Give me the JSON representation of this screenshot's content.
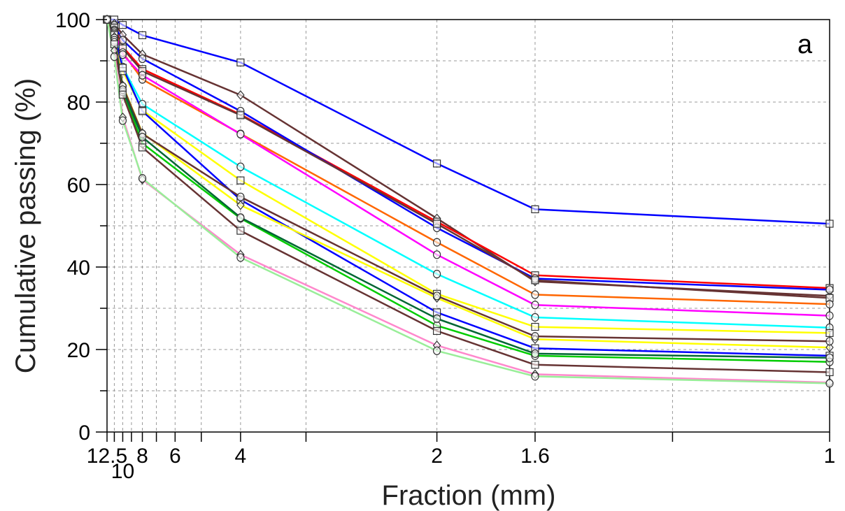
{
  "chart_data": {
    "type": "line",
    "title": "",
    "xlabel": "Fraction (mm)",
    "ylabel": "Cumulative passing (%)",
    "panel_label": "a",
    "x_scale": "reciprocal",
    "xlim": [
      12.5,
      1
    ],
    "ylim": [
      0,
      100
    ],
    "grid": true,
    "x_ticks": [
      12.5,
      10,
      8,
      6,
      4,
      2,
      1.6,
      1
    ],
    "x_tick_labels": [
      "12.5",
      "10",
      "8",
      "6",
      "4",
      "2",
      "1.6",
      "1"
    ],
    "y_ticks": [
      0,
      20,
      40,
      60,
      80,
      100
    ],
    "y_tick_labels": [
      "0",
      "20",
      "40",
      "60",
      "80",
      "100"
    ],
    "x": [
      12.5,
      11.2,
      10,
      8,
      4,
      2,
      1.6,
      1
    ],
    "series": [
      {
        "color": "#0000ff",
        "marker": "square",
        "values": [
          100,
          100,
          98.7,
          96.2,
          89.6,
          65.1,
          54.0,
          50.5
        ]
      },
      {
        "color": "#663333",
        "marker": "diamond",
        "values": [
          100,
          99.0,
          96.3,
          91.6,
          81.7,
          51.8,
          36.5,
          33.0
        ]
      },
      {
        "color": "#ff0000",
        "marker": "square",
        "values": [
          100,
          98.2,
          93.4,
          88.0,
          77.0,
          51.0,
          38.0,
          34.9
        ]
      },
      {
        "color": "#0000ff",
        "marker": "circle",
        "values": [
          100,
          98.6,
          95.0,
          90.5,
          77.8,
          49.5,
          37.2,
          34.5
        ]
      },
      {
        "color": "#663333",
        "marker": "square",
        "values": [
          100,
          98.0,
          93.0,
          87.5,
          76.8,
          50.5,
          36.8,
          32.5
        ]
      },
      {
        "color": "#ff6600",
        "marker": "circle",
        "values": [
          100,
          97.5,
          92.0,
          85.5,
          72.3,
          46.0,
          33.3,
          31.0
        ]
      },
      {
        "color": "#ff00ff",
        "marker": "circle",
        "values": [
          100,
          97.2,
          91.5,
          86.5,
          72.2,
          43.0,
          30.8,
          28.2
        ]
      },
      {
        "color": "#00ffff",
        "marker": "circle",
        "values": [
          100,
          96.8,
          88.5,
          79.5,
          64.3,
          38.3,
          27.8,
          25.3
        ]
      },
      {
        "color": "#ffff00",
        "marker": "square",
        "values": [
          100,
          96.5,
          87.5,
          78.0,
          61.0,
          33.5,
          25.5,
          24.0
        ]
      },
      {
        "color": "#0000ff",
        "marker": "square",
        "values": [
          100,
          96.2,
          88.3,
          77.8,
          56.3,
          29.0,
          20.3,
          18.5
        ]
      },
      {
        "color": "#ffff00",
        "marker": "diamond",
        "values": [
          100,
          95.8,
          84.0,
          72.5,
          55.0,
          32.5,
          22.5,
          20.5
        ]
      },
      {
        "color": "#663333",
        "marker": "circle",
        "values": [
          100,
          95.5,
          83.8,
          72.3,
          57.0,
          33.0,
          23.2,
          22.0
        ]
      },
      {
        "color": "#00cc00",
        "marker": "circle",
        "values": [
          100,
          95.0,
          82.5,
          70.0,
          51.8,
          25.8,
          18.5,
          17.0
        ]
      },
      {
        "color": "#006633",
        "marker": "circle",
        "values": [
          100,
          94.5,
          83.0,
          71.5,
          52.0,
          27.5,
          19.0,
          18.0
        ]
      },
      {
        "color": "#663333",
        "marker": "square",
        "values": [
          100,
          94.0,
          81.8,
          69.0,
          48.8,
          24.5,
          16.3,
          14.5
        ]
      },
      {
        "color": "#ff88cc",
        "marker": "diamond",
        "values": [
          100,
          92.5,
          76.3,
          61.2,
          43.0,
          21.0,
          14.0,
          12.0
        ]
      },
      {
        "color": "#99ee99",
        "marker": "circle",
        "values": [
          100,
          91.0,
          75.5,
          61.5,
          42.3,
          19.7,
          13.5,
          11.8
        ]
      }
    ]
  }
}
